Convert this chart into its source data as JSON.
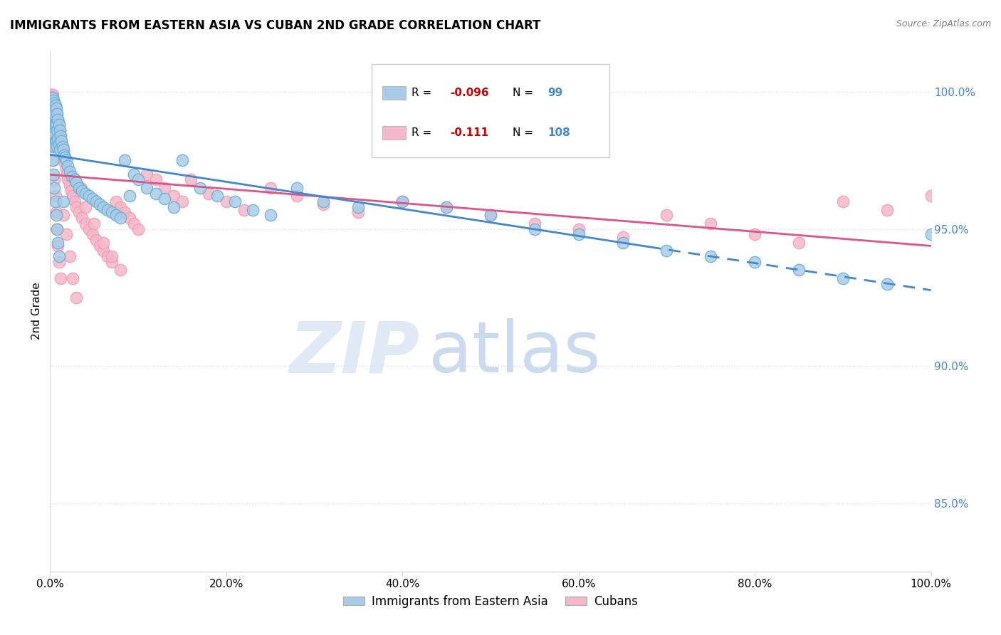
{
  "title": "IMMIGRANTS FROM EASTERN ASIA VS CUBAN 2ND GRADE CORRELATION CHART",
  "source": "Source: ZipAtlas.com",
  "ylabel": "2nd Grade",
  "xlim": [
    0.0,
    1.0
  ],
  "ylim": [
    0.825,
    1.015
  ],
  "legend_blue_label": "Immigrants from Eastern Asia",
  "legend_pink_label": "Cubans",
  "R_blue": -0.096,
  "N_blue": 99,
  "R_pink": -0.111,
  "N_pink": 108,
  "blue_color": "#a8cce8",
  "pink_color": "#f4b8c8",
  "blue_line_color": "#4488cc",
  "pink_line_color": "#dd5588",
  "blue_circle_color": "#6aaed6",
  "pink_circle_color": "#f799b4",
  "watermark_zip": "ZIP",
  "watermark_atlas": "atlas",
  "ytick_positions": [
    0.85,
    0.9,
    0.95,
    1.0
  ],
  "ytick_labels": [
    "85.0%",
    "90.0%",
    "95.0%",
    "100.0%"
  ],
  "xtick_positions": [
    0.0,
    0.2,
    0.4,
    0.6,
    0.8,
    1.0
  ],
  "xtick_labels": [
    "0.0%",
    "20.0%",
    "40.0%",
    "60.0%",
    "80.0%",
    "100.0%"
  ],
  "grid_color": "#dddddd",
  "blue_x": [
    0.001,
    0.001,
    0.002,
    0.002,
    0.002,
    0.002,
    0.003,
    0.003,
    0.003,
    0.003,
    0.003,
    0.004,
    0.004,
    0.004,
    0.004,
    0.004,
    0.005,
    0.005,
    0.005,
    0.005,
    0.005,
    0.006,
    0.006,
    0.006,
    0.007,
    0.007,
    0.007,
    0.008,
    0.008,
    0.008,
    0.009,
    0.009,
    0.01,
    0.01,
    0.011,
    0.011,
    0.012,
    0.013,
    0.014,
    0.015,
    0.016,
    0.017,
    0.018,
    0.02,
    0.022,
    0.025,
    0.028,
    0.03,
    0.033,
    0.036,
    0.04,
    0.044,
    0.048,
    0.052,
    0.056,
    0.06,
    0.065,
    0.07,
    0.075,
    0.08,
    0.085,
    0.09,
    0.095,
    0.1,
    0.11,
    0.12,
    0.13,
    0.14,
    0.15,
    0.17,
    0.19,
    0.21,
    0.23,
    0.25,
    0.28,
    0.31,
    0.35,
    0.4,
    0.45,
    0.5,
    0.55,
    0.6,
    0.65,
    0.7,
    0.75,
    0.8,
    0.85,
    0.9,
    0.95,
    1.0,
    0.003,
    0.004,
    0.005,
    0.006,
    0.007,
    0.008,
    0.009,
    0.01,
    0.015
  ],
  "blue_y": [
    0.997,
    0.993,
    0.998,
    0.993,
    0.988,
    0.984,
    0.998,
    0.994,
    0.99,
    0.986,
    0.982,
    0.997,
    0.993,
    0.989,
    0.985,
    0.981,
    0.996,
    0.992,
    0.988,
    0.984,
    0.98,
    0.995,
    0.988,
    0.982,
    0.994,
    0.988,
    0.982,
    0.992,
    0.986,
    0.98,
    0.99,
    0.983,
    0.988,
    0.981,
    0.986,
    0.979,
    0.984,
    0.982,
    0.98,
    0.979,
    0.977,
    0.976,
    0.975,
    0.973,
    0.971,
    0.969,
    0.968,
    0.967,
    0.965,
    0.964,
    0.963,
    0.962,
    0.961,
    0.96,
    0.959,
    0.958,
    0.957,
    0.956,
    0.955,
    0.954,
    0.975,
    0.962,
    0.97,
    0.968,
    0.965,
    0.963,
    0.961,
    0.958,
    0.975,
    0.965,
    0.962,
    0.96,
    0.957,
    0.955,
    0.965,
    0.96,
    0.958,
    0.96,
    0.958,
    0.955,
    0.95,
    0.948,
    0.945,
    0.942,
    0.94,
    0.938,
    0.935,
    0.932,
    0.93,
    0.948,
    0.975,
    0.97,
    0.965,
    0.96,
    0.955,
    0.95,
    0.945,
    0.94,
    0.96
  ],
  "pink_x": [
    0.001,
    0.001,
    0.002,
    0.002,
    0.002,
    0.003,
    0.003,
    0.003,
    0.003,
    0.004,
    0.004,
    0.004,
    0.004,
    0.005,
    0.005,
    0.005,
    0.005,
    0.006,
    0.006,
    0.006,
    0.007,
    0.007,
    0.007,
    0.008,
    0.008,
    0.008,
    0.009,
    0.009,
    0.01,
    0.01,
    0.011,
    0.011,
    0.012,
    0.013,
    0.014,
    0.015,
    0.016,
    0.017,
    0.018,
    0.019,
    0.02,
    0.022,
    0.024,
    0.026,
    0.028,
    0.03,
    0.033,
    0.036,
    0.04,
    0.044,
    0.048,
    0.052,
    0.056,
    0.06,
    0.065,
    0.07,
    0.075,
    0.08,
    0.085,
    0.09,
    0.095,
    0.1,
    0.11,
    0.12,
    0.13,
    0.14,
    0.15,
    0.16,
    0.18,
    0.2,
    0.22,
    0.25,
    0.28,
    0.31,
    0.35,
    0.4,
    0.45,
    0.5,
    0.55,
    0.6,
    0.65,
    0.7,
    0.75,
    0.8,
    0.85,
    0.9,
    0.95,
    1.0,
    0.003,
    0.004,
    0.005,
    0.006,
    0.007,
    0.008,
    0.009,
    0.01,
    0.012,
    0.015,
    0.018,
    0.022,
    0.026,
    0.03,
    0.035,
    0.04,
    0.05,
    0.06,
    0.07,
    0.08
  ],
  "pink_y": [
    0.998,
    0.994,
    0.999,
    0.995,
    0.991,
    0.999,
    0.996,
    0.992,
    0.988,
    0.997,
    0.993,
    0.989,
    0.985,
    0.996,
    0.992,
    0.988,
    0.984,
    0.994,
    0.989,
    0.984,
    0.993,
    0.988,
    0.983,
    0.991,
    0.986,
    0.981,
    0.99,
    0.984,
    0.988,
    0.982,
    0.986,
    0.98,
    0.984,
    0.982,
    0.98,
    0.978,
    0.976,
    0.974,
    0.972,
    0.97,
    0.968,
    0.966,
    0.964,
    0.962,
    0.96,
    0.958,
    0.956,
    0.954,
    0.952,
    0.95,
    0.948,
    0.946,
    0.944,
    0.942,
    0.94,
    0.938,
    0.96,
    0.958,
    0.956,
    0.954,
    0.952,
    0.95,
    0.97,
    0.968,
    0.965,
    0.962,
    0.96,
    0.968,
    0.963,
    0.96,
    0.957,
    0.965,
    0.962,
    0.959,
    0.956,
    0.96,
    0.958,
    0.955,
    0.952,
    0.95,
    0.947,
    0.955,
    0.952,
    0.948,
    0.945,
    0.96,
    0.957,
    0.962,
    0.98,
    0.975,
    0.968,
    0.962,
    0.956,
    0.95,
    0.944,
    0.938,
    0.932,
    0.955,
    0.948,
    0.94,
    0.932,
    0.925,
    0.965,
    0.958,
    0.952,
    0.945,
    0.94,
    0.935
  ]
}
